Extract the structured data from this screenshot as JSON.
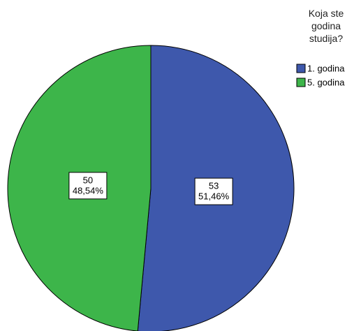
{
  "chart_data": {
    "type": "pie",
    "legend_title": "Koja ste godina studija?",
    "categories": [
      "1. godina",
      "5. godina"
    ],
    "values": [
      53,
      50
    ],
    "percentages": [
      51.46,
      48.54
    ],
    "percentage_labels": [
      "51,46%",
      "48,54%"
    ],
    "colors": [
      "#3e58ac",
      "#3db54a"
    ],
    "legend": "top-right"
  }
}
